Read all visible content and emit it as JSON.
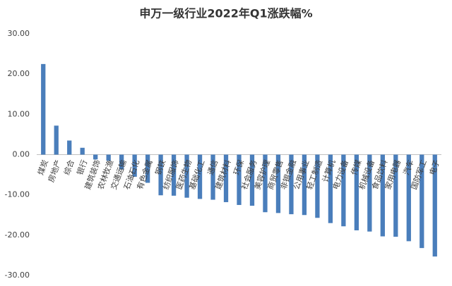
{
  "chart_data": {
    "type": "bar",
    "title": "申万一级行业2022年Q1涨跌幅%",
    "categories": [
      "煤炭",
      "房地产",
      "综合",
      "银行",
      "建筑装饰",
      "农林牧渔",
      "交通运输",
      "石油石化",
      "有色金属",
      "钢铁",
      "纺织服饰",
      "医药生物",
      "基础化工",
      "通信",
      "建筑材料",
      "环保",
      "社会服务",
      "美容护理",
      "商贸零售",
      "非银金融",
      "公用事业",
      "轻工制造",
      "计算机",
      "电力设备",
      "传媒",
      "机械设备",
      "食品饮料",
      "家用电器",
      "汽车",
      "国防军工",
      "电子"
    ],
    "values": [
      22.5,
      7.2,
      3.5,
      1.7,
      -1.2,
      -1.5,
      -3.7,
      -5.5,
      -7.0,
      -10.1,
      -10.2,
      -10.7,
      -11.0,
      -11.2,
      -11.8,
      -12.5,
      -12.7,
      -14.3,
      -14.5,
      -14.8,
      -15.0,
      -15.7,
      -17.0,
      -17.8,
      -18.8,
      -19.1,
      -20.3,
      -20.4,
      -21.5,
      -23.2,
      -25.3
    ],
    "color": "#4a7ebb",
    "ylim": [
      -30,
      30
    ],
    "yticks": [
      {
        "value": 30,
        "label": "30.00"
      },
      {
        "value": 20,
        "label": "20.00"
      },
      {
        "value": 10,
        "label": "10.00"
      },
      {
        "value": 0,
        "label": "0.00"
      },
      {
        "value": -10,
        "label": "-10.00"
      },
      {
        "value": -20,
        "label": "-20.00"
      },
      {
        "value": -30,
        "label": "-30.00"
      }
    ],
    "grid": false
  }
}
